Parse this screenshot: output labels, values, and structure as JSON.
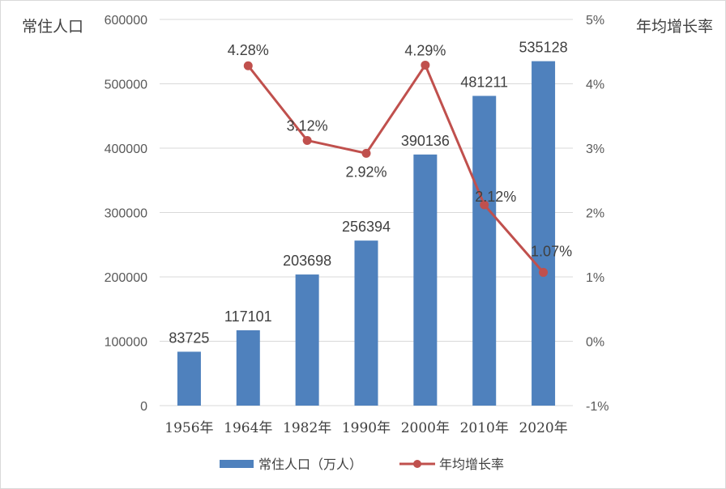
{
  "chart_data": {
    "type": "bar",
    "categories": [
      "1956年",
      "1964年",
      "1982年",
      "1990年",
      "2000年",
      "2010年",
      "2020年"
    ],
    "series": [
      {
        "name": "常住人口（万人）",
        "type": "bar",
        "axis": "left",
        "color": "#4f81bd",
        "values": [
          83725,
          117101,
          203698,
          256394,
          390136,
          481211,
          535128
        ],
        "labels": [
          "83725",
          "117101",
          "203698",
          "256394",
          "390136",
          "481211",
          "535128"
        ]
      },
      {
        "name": "年均增长率",
        "type": "line",
        "axis": "right",
        "color": "#c0504d",
        "values": [
          null,
          4.28,
          3.12,
          2.92,
          4.29,
          2.12,
          1.07
        ],
        "labels": [
          "",
          "4.28%",
          "3.12%",
          "2.92%",
          "4.29%",
          "2.12%",
          "1.07%"
        ]
      }
    ],
    "ylabel": "常住人口",
    "y2label": "年均增长率",
    "ylim": [
      0,
      600000
    ],
    "y2lim": [
      -1,
      5
    ],
    "yticks": [
      "0",
      "100000",
      "200000",
      "300000",
      "400000",
      "500000",
      "600000"
    ],
    "y2ticks": [
      "-1%",
      "0%",
      "1%",
      "2%",
      "3%",
      "4%",
      "5%"
    ],
    "grid": true,
    "legend": "bottom"
  }
}
